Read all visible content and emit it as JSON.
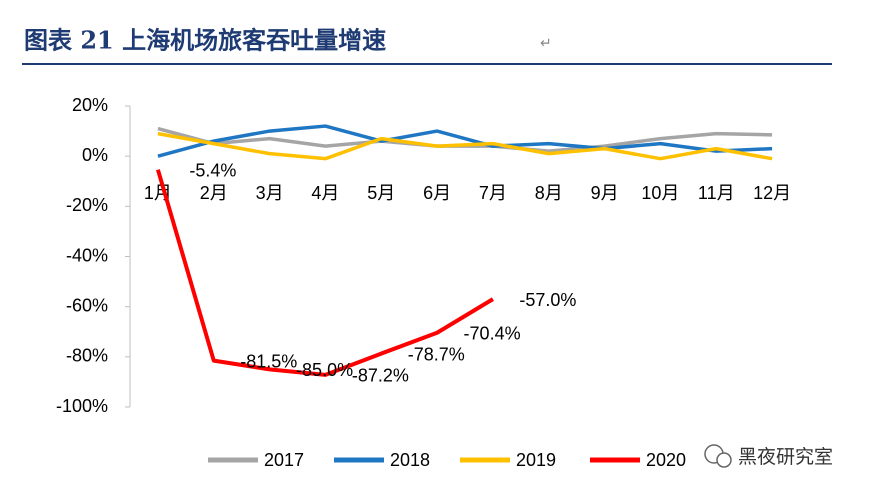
{
  "chart_data": {
    "type": "line",
    "title": "图表 21 上海机场旅客吞吐量增速",
    "categories": [
      "1月",
      "2月",
      "3月",
      "4月",
      "5月",
      "6月",
      "7月",
      "8月",
      "9月",
      "10月",
      "11月",
      "12月"
    ],
    "series": [
      {
        "name": "2017",
        "color": "#a5a5a5",
        "values": [
          11,
          5,
          7,
          4,
          6,
          4,
          4,
          2,
          4,
          7,
          9,
          8.5
        ]
      },
      {
        "name": "2018",
        "color": "#1f77c4",
        "values": [
          0,
          6,
          10,
          12,
          6,
          10,
          4,
          5,
          3,
          5,
          2,
          3
        ]
      },
      {
        "name": "2019",
        "color": "#ffc000",
        "values": [
          9,
          5,
          1,
          -1,
          7,
          4,
          5,
          1,
          3,
          -1,
          3,
          -1
        ]
      },
      {
        "name": "2020",
        "color": "#ff0000",
        "values": [
          -5.4,
          -81.5,
          -85.0,
          -87.2,
          -78.7,
          -70.4,
          -57.0,
          null,
          null,
          null,
          null,
          null
        ],
        "value_labels": [
          "-5.4%",
          "-81.5%",
          "-85.0%",
          "-87.2%",
          "-78.7%",
          "-70.4%",
          "-57.0%",
          null,
          null,
          null,
          null,
          null
        ]
      }
    ],
    "ylim": [
      -100,
      20
    ],
    "yticks": [
      {
        "value": -100,
        "label": "-100%"
      },
      {
        "value": -80,
        "label": "-80%"
      },
      {
        "value": -60,
        "label": "-60%"
      },
      {
        "value": -40,
        "label": "-40%"
      },
      {
        "value": -20,
        "label": "-20%"
      },
      {
        "value": 0,
        "label": "0%"
      },
      {
        "value": 20,
        "label": "20%"
      }
    ],
    "legend": "bottom",
    "watermark": "黑夜研究室"
  }
}
